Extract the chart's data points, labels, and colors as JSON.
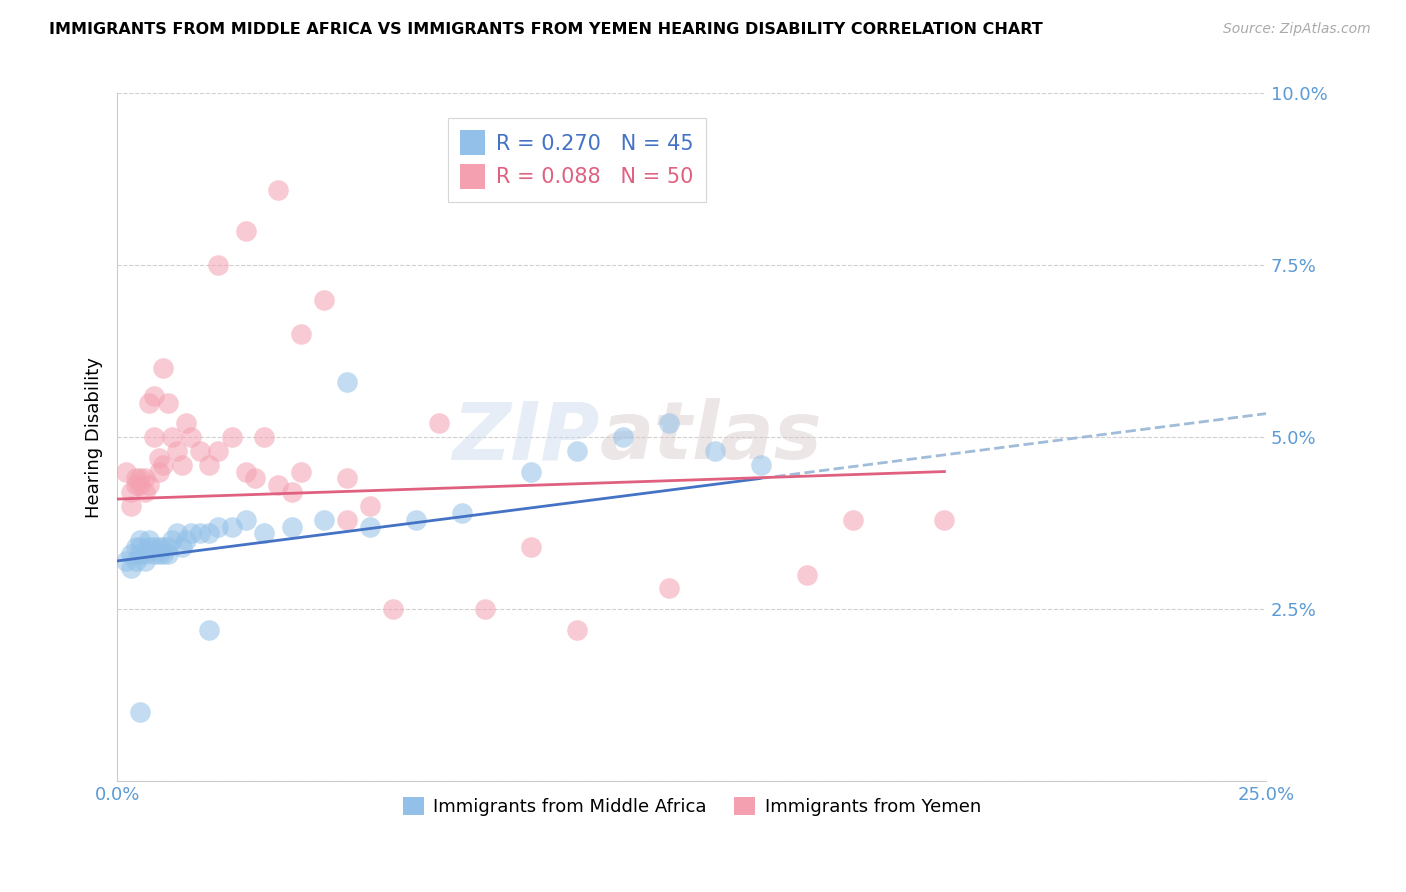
{
  "title": "IMMIGRANTS FROM MIDDLE AFRICA VS IMMIGRANTS FROM YEMEN HEARING DISABILITY CORRELATION CHART",
  "source": "Source: ZipAtlas.com",
  "ylabel": "Hearing Disability",
  "legend_label1_r": "R = 0.270",
  "legend_label1_n": "N = 45",
  "legend_label2_r": "R = 0.088",
  "legend_label2_n": "N = 50",
  "legend_label_bottom1": "Immigrants from Middle Africa",
  "legend_label_bottom2": "Immigrants from Yemen",
  "xlim": [
    0.0,
    0.25
  ],
  "ylim": [
    0.0,
    0.1
  ],
  "color_blue": "#92c0e8",
  "color_pink": "#f4a0b0",
  "color_blue_line": "#4472c4",
  "color_pink_line": "#e06080",
  "color_axis_text": "#5b9bd5",
  "color_grid": "#d0d0d0",
  "watermark": "ZIPatlas",
  "blue_scatter_x": [
    0.002,
    0.003,
    0.003,
    0.004,
    0.004,
    0.005,
    0.005,
    0.005,
    0.006,
    0.006,
    0.007,
    0.007,
    0.008,
    0.008,
    0.009,
    0.009,
    0.01,
    0.01,
    0.011,
    0.011,
    0.012,
    0.013,
    0.014,
    0.015,
    0.016,
    0.018,
    0.02,
    0.022,
    0.025,
    0.028,
    0.032,
    0.038,
    0.045,
    0.055,
    0.065,
    0.075,
    0.09,
    0.1,
    0.11,
    0.12,
    0.13,
    0.14,
    0.05,
    0.02,
    0.005
  ],
  "blue_scatter_y": [
    0.032,
    0.031,
    0.033,
    0.034,
    0.032,
    0.033,
    0.034,
    0.035,
    0.032,
    0.033,
    0.034,
    0.035,
    0.033,
    0.034,
    0.033,
    0.034,
    0.033,
    0.034,
    0.033,
    0.034,
    0.035,
    0.036,
    0.034,
    0.035,
    0.036,
    0.036,
    0.036,
    0.037,
    0.037,
    0.038,
    0.036,
    0.037,
    0.038,
    0.037,
    0.038,
    0.039,
    0.045,
    0.048,
    0.05,
    0.052,
    0.048,
    0.046,
    0.058,
    0.022,
    0.01
  ],
  "pink_scatter_x": [
    0.002,
    0.003,
    0.003,
    0.004,
    0.004,
    0.005,
    0.005,
    0.006,
    0.006,
    0.007,
    0.007,
    0.008,
    0.008,
    0.009,
    0.009,
    0.01,
    0.01,
    0.011,
    0.012,
    0.013,
    0.014,
    0.015,
    0.016,
    0.018,
    0.02,
    0.022,
    0.025,
    0.028,
    0.03,
    0.032,
    0.035,
    0.038,
    0.04,
    0.045,
    0.05,
    0.055,
    0.07,
    0.09,
    0.12,
    0.15,
    0.16,
    0.18,
    0.022,
    0.028,
    0.035,
    0.04,
    0.05,
    0.06,
    0.08,
    0.1
  ],
  "pink_scatter_y": [
    0.045,
    0.04,
    0.042,
    0.043,
    0.044,
    0.043,
    0.044,
    0.042,
    0.044,
    0.043,
    0.055,
    0.056,
    0.05,
    0.047,
    0.045,
    0.046,
    0.06,
    0.055,
    0.05,
    0.048,
    0.046,
    0.052,
    0.05,
    0.048,
    0.046,
    0.048,
    0.05,
    0.045,
    0.044,
    0.05,
    0.043,
    0.042,
    0.065,
    0.07,
    0.044,
    0.04,
    0.052,
    0.034,
    0.028,
    0.03,
    0.038,
    0.038,
    0.075,
    0.08,
    0.086,
    0.045,
    0.038,
    0.025,
    0.025,
    0.022
  ]
}
